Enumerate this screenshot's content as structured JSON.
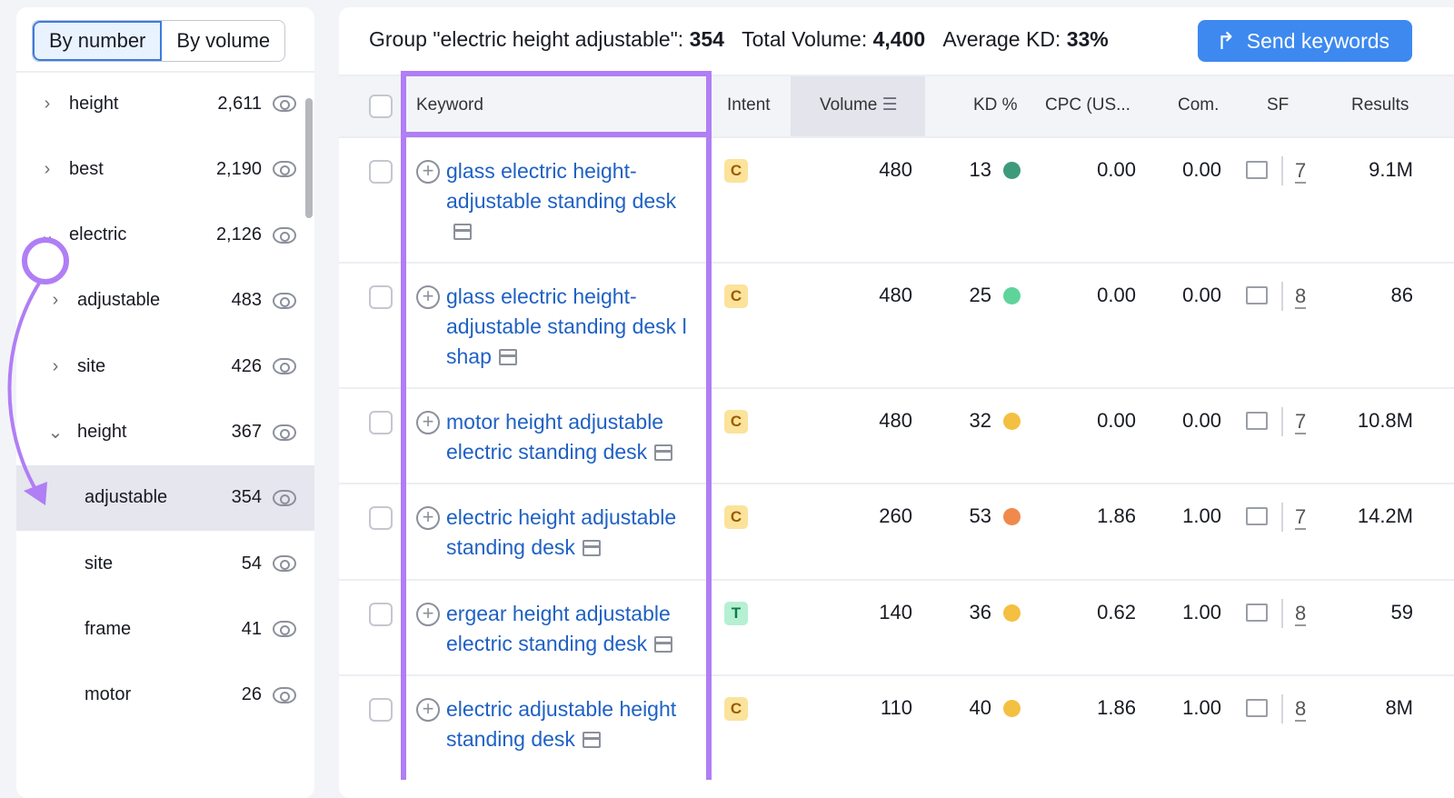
{
  "sidebar": {
    "toggle": {
      "by_number": "By number",
      "by_volume": "By volume",
      "active": "By number"
    },
    "nodes": [
      {
        "label": "height",
        "count": "2,611",
        "expanded": false,
        "level": 0
      },
      {
        "label": "best",
        "count": "2,190",
        "expanded": false,
        "level": 0
      },
      {
        "label": "electric",
        "count": "2,126",
        "expanded": true,
        "level": 0
      },
      {
        "label": "adjustable",
        "count": "483",
        "expanded": false,
        "level": 1
      },
      {
        "label": "site",
        "count": "426",
        "expanded": false,
        "level": 1
      },
      {
        "label": "height",
        "count": "367",
        "expanded": true,
        "level": 1
      },
      {
        "label": "adjustable",
        "count": "354",
        "level": 2,
        "selected": true
      },
      {
        "label": "site",
        "count": "54",
        "level": 2
      },
      {
        "label": "frame",
        "count": "41",
        "level": 2
      },
      {
        "label": "motor",
        "count": "26",
        "level": 2
      }
    ]
  },
  "header": {
    "group_label": "Group \"electric height adjustable\": ",
    "group_count": "354",
    "total_volume_label": "Total Volume: ",
    "total_volume": "4,400",
    "avg_kd_label": "Average KD: ",
    "avg_kd": "33%",
    "send_button": "Send keywords"
  },
  "table": {
    "columns": [
      "Keyword",
      "Intent",
      "Volume",
      "KD %",
      "CPC (US...",
      "Com.",
      "SF",
      "Results"
    ],
    "sorted_by": "Volume",
    "rows": [
      {
        "keyword": "glass electric height-adjustable standing desk",
        "intent": "C",
        "volume": "480",
        "kd": "13",
        "kd_color": "#3d9a7a",
        "cpc": "0.00",
        "com": "0.00",
        "sf": "7",
        "results": "9.1M"
      },
      {
        "keyword": "glass electric height-adjustable standing desk l shap",
        "intent": "C",
        "volume": "480",
        "kd": "25",
        "kd_color": "#5fd49a",
        "cpc": "0.00",
        "com": "0.00",
        "sf": "8",
        "results": "86"
      },
      {
        "keyword": "motor height adjustable electric standing desk",
        "intent": "C",
        "volume": "480",
        "kd": "32",
        "kd_color": "#f4c042",
        "cpc": "0.00",
        "com": "0.00",
        "sf": "7",
        "results": "10.8M"
      },
      {
        "keyword": "electric height adjustable standing desk",
        "intent": "C",
        "volume": "260",
        "kd": "53",
        "kd_color": "#ef8a4c",
        "cpc": "1.86",
        "com": "1.00",
        "sf": "7",
        "results": "14.2M"
      },
      {
        "keyword": "ergear height adjustable electric standing desk",
        "intent": "T",
        "volume": "140",
        "kd": "36",
        "kd_color": "#f4c042",
        "cpc": "0.62",
        "com": "1.00",
        "sf": "8",
        "results": "59"
      },
      {
        "keyword": "electric adjustable height standing desk",
        "intent": "C",
        "volume": "110",
        "kd": "40",
        "kd_color": "#f4c042",
        "cpc": "1.86",
        "com": "1.00",
        "sf": "8",
        "results": "8M"
      }
    ]
  },
  "colors": {
    "accent": "#3d89f0",
    "annotation": "#b07ef5",
    "intent_C": "#fbe39b",
    "intent_T": "#b5f0d2"
  }
}
